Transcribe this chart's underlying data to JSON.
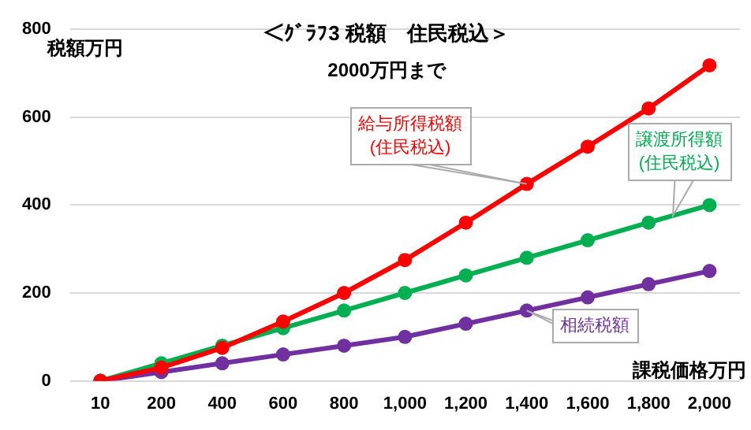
{
  "chart_data": {
    "type": "line",
    "title": "＜ｸﾞﾗﾌ3 税額　住民税込＞",
    "subtitle": "2000万円まで",
    "xlabel": "課税価格万円",
    "ylabel": "税額万円",
    "categories": [
      "10",
      "200",
      "400",
      "600",
      "800",
      "1,000",
      "1,200",
      "1,400",
      "1,600",
      "1,800",
      "2,000"
    ],
    "series": [
      {
        "name": "給与所得税額(住民税込)",
        "color": "#ff0000",
        "values": [
          0,
          30,
          75,
          135,
          200,
          275,
          360,
          448,
          533,
          620,
          718
        ]
      },
      {
        "name": "譲渡所得額(住民税込)",
        "color": "#00b050",
        "values": [
          0,
          40,
          80,
          120,
          160,
          200,
          240,
          280,
          320,
          360,
          400
        ]
      },
      {
        "name": "相続税額",
        "color": "#7030a0",
        "values": [
          0,
          20,
          40,
          60,
          80,
          100,
          130,
          160,
          190,
          220,
          250
        ]
      }
    ],
    "ylim": [
      0,
      800
    ],
    "yticks": [
      0,
      200,
      400,
      600,
      800
    ],
    "grid": "y",
    "legend": false,
    "marker": "circle",
    "line_style": "solid"
  }
}
